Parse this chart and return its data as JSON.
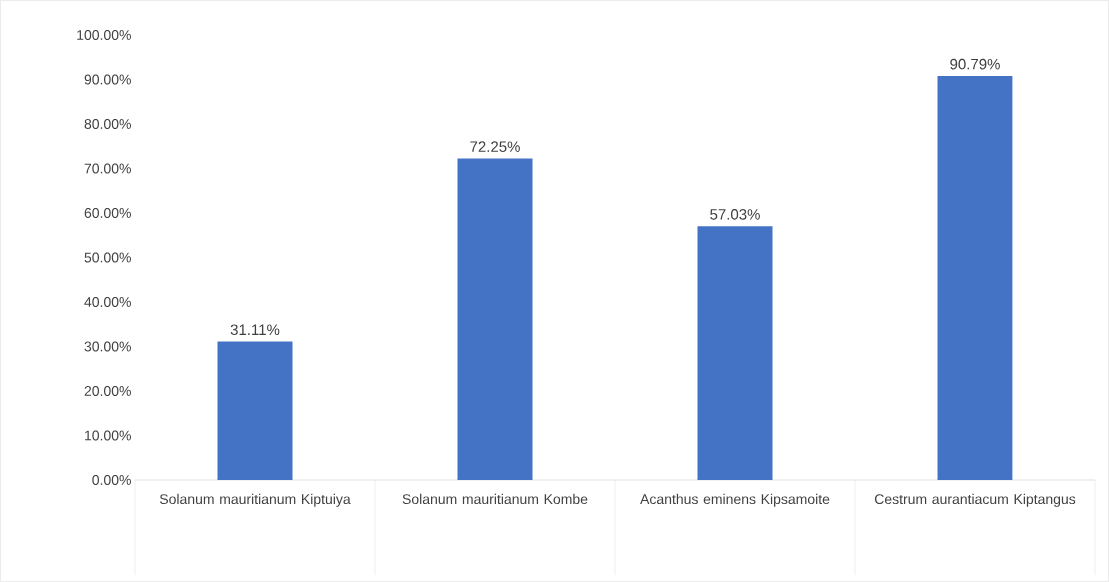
{
  "chart_data": {
    "type": "bar",
    "categories": [
      "Solanum mauritianum Kiptuiya",
      "Solanum mauritianum Kombe",
      "Acanthus eminens Kipsamoite",
      "Cestrum aurantiacum Kiptangus"
    ],
    "values": [
      31.11,
      72.25,
      57.03,
      90.79
    ],
    "value_labels": [
      "31.11%",
      "72.25%",
      "57.03%",
      "90.79%"
    ],
    "color": "#4472c4",
    "ylim": [
      0,
      100
    ],
    "yticks": [
      {
        "value": 0,
        "label": "0.00%"
      },
      {
        "value": 10,
        "label": "10.00%"
      },
      {
        "value": 20,
        "label": "20.00%"
      },
      {
        "value": 30,
        "label": "30.00%"
      },
      {
        "value": 40,
        "label": "40.00%"
      },
      {
        "value": 50,
        "label": "50.00%"
      },
      {
        "value": 60,
        "label": "60.00%"
      },
      {
        "value": 70,
        "label": "70.00%"
      },
      {
        "value": 80,
        "label": "80.00%"
      },
      {
        "value": 90,
        "label": "90.00%"
      },
      {
        "value": 100,
        "label": "100.00%"
      }
    ],
    "grid": false
  }
}
